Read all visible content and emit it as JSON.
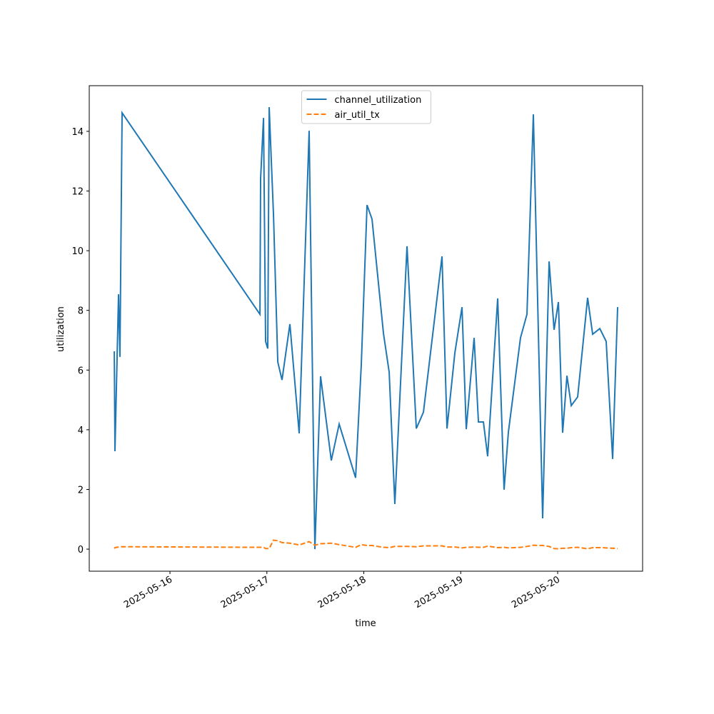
{
  "chart_data": {
    "type": "line",
    "xlabel": "time",
    "ylabel": "utilization",
    "x": [
      "2025-05-15T10:13",
      "2025-05-15T10:23",
      "2025-05-15T11:16",
      "2025-05-15T11:37",
      "2025-05-15T12:09",
      "2025-05-16T22:17",
      "2025-05-16T22:27",
      "2025-05-16T23:10",
      "2025-05-16T23:41",
      "2025-05-17T00:13",
      "2025-05-17T00:34",
      "2025-05-17T01:38",
      "2025-05-17T02:42",
      "2025-05-17T03:45",
      "2025-05-17T05:42",
      "2025-05-17T08:00",
      "2025-05-17T10:28",
      "2025-05-17T11:53",
      "2025-05-17T13:18",
      "2025-05-17T15:57",
      "2025-05-17T17:54",
      "2025-05-17T21:58",
      "2025-05-17T23:23",
      "2025-05-18T00:48",
      "2025-05-18T02:02",
      "2025-05-18T04:52",
      "2025-05-18T06:17",
      "2025-05-18T07:41",
      "2025-05-18T10:42",
      "2025-05-18T13:00",
      "2025-05-18T14:46",
      "2025-05-18T19:22",
      "2025-05-18T20:36",
      "2025-05-18T22:33",
      "2025-05-19T00:19",
      "2025-05-19T01:22",
      "2025-05-19T03:19",
      "2025-05-19T04:23",
      "2025-05-19T05:37",
      "2025-05-19T06:40",
      "2025-05-19T09:09",
      "2025-05-19T10:44",
      "2025-05-19T11:48",
      "2025-05-19T14:48",
      "2025-05-19T16:24",
      "2025-05-19T17:59",
      "2025-05-19T20:17",
      "2025-05-19T21:53",
      "2025-05-19T23:07",
      "2025-05-20T00:11",
      "2025-05-20T01:14",
      "2025-05-20T02:18",
      "2025-05-20T03:22",
      "2025-05-20T04:57",
      "2025-05-20T07:25",
      "2025-05-20T08:40",
      "2025-05-20T10:26",
      "2025-05-20T12:01",
      "2025-05-20T13:37",
      "2025-05-20T14:51"
    ],
    "series": [
      {
        "name": "channel_utilization",
        "color": "#1f77b4",
        "linestyle": "solid",
        "values": [
          6.63,
          3.28,
          8.54,
          6.44,
          14.62,
          7.87,
          12.42,
          14.45,
          6.96,
          6.72,
          14.81,
          11.22,
          6.27,
          5.67,
          7.54,
          3.88,
          14.02,
          0,
          5.79,
          2.97,
          4.19,
          2.39,
          6.2,
          11.53,
          11.06,
          7.23,
          5.93,
          1.51,
          10.15,
          4.04,
          4.59,
          9.81,
          4.04,
          6.58,
          8.11,
          4.02,
          7.08,
          4.26,
          4.26,
          3.11,
          8.4,
          1.99,
          3.92,
          7.08,
          7.87,
          14.57,
          1.03,
          9.64,
          7.35,
          8.28,
          3.9,
          5.81,
          4.81,
          5.1,
          8.42,
          7.2,
          7.39,
          6.96,
          3.02,
          8.11
        ]
      },
      {
        "name": "air_util_tx",
        "color": "#ff7f0e",
        "linestyle": "dashed",
        "values": [
          0.02,
          0.05,
          0.07,
          0.08,
          0.08,
          0.06,
          0.06,
          0.06,
          0.02,
          0.02,
          0.02,
          0.3,
          0.28,
          0.22,
          0.2,
          0.14,
          0.25,
          0.13,
          0.18,
          0.2,
          0.15,
          0.06,
          0.15,
          0.12,
          0.12,
          0.06,
          0.05,
          0.09,
          0.09,
          0.08,
          0.11,
          0.11,
          0.07,
          0.07,
          0.04,
          0.06,
          0.07,
          0.06,
          0.06,
          0.1,
          0.05,
          0.06,
          0.04,
          0.06,
          0.09,
          0.13,
          0.12,
          0.09,
          0.02,
          0.01,
          0.03,
          0.03,
          0.05,
          0.06,
          0.01,
          0.05,
          0.05,
          0.04,
          0.03,
          0.02
        ]
      }
    ],
    "xlim": [
      "2025-05-15T04:01",
      "2025-05-20T21:02"
    ],
    "xticks": [
      "2025-05-16",
      "2025-05-17",
      "2025-05-18",
      "2025-05-19",
      "2025-05-20"
    ],
    "ylim": [
      -0.74,
      15.53
    ],
    "yticks": [
      0,
      2,
      4,
      6,
      8,
      10,
      12,
      14
    ],
    "grid": false,
    "legend": "upper center"
  }
}
